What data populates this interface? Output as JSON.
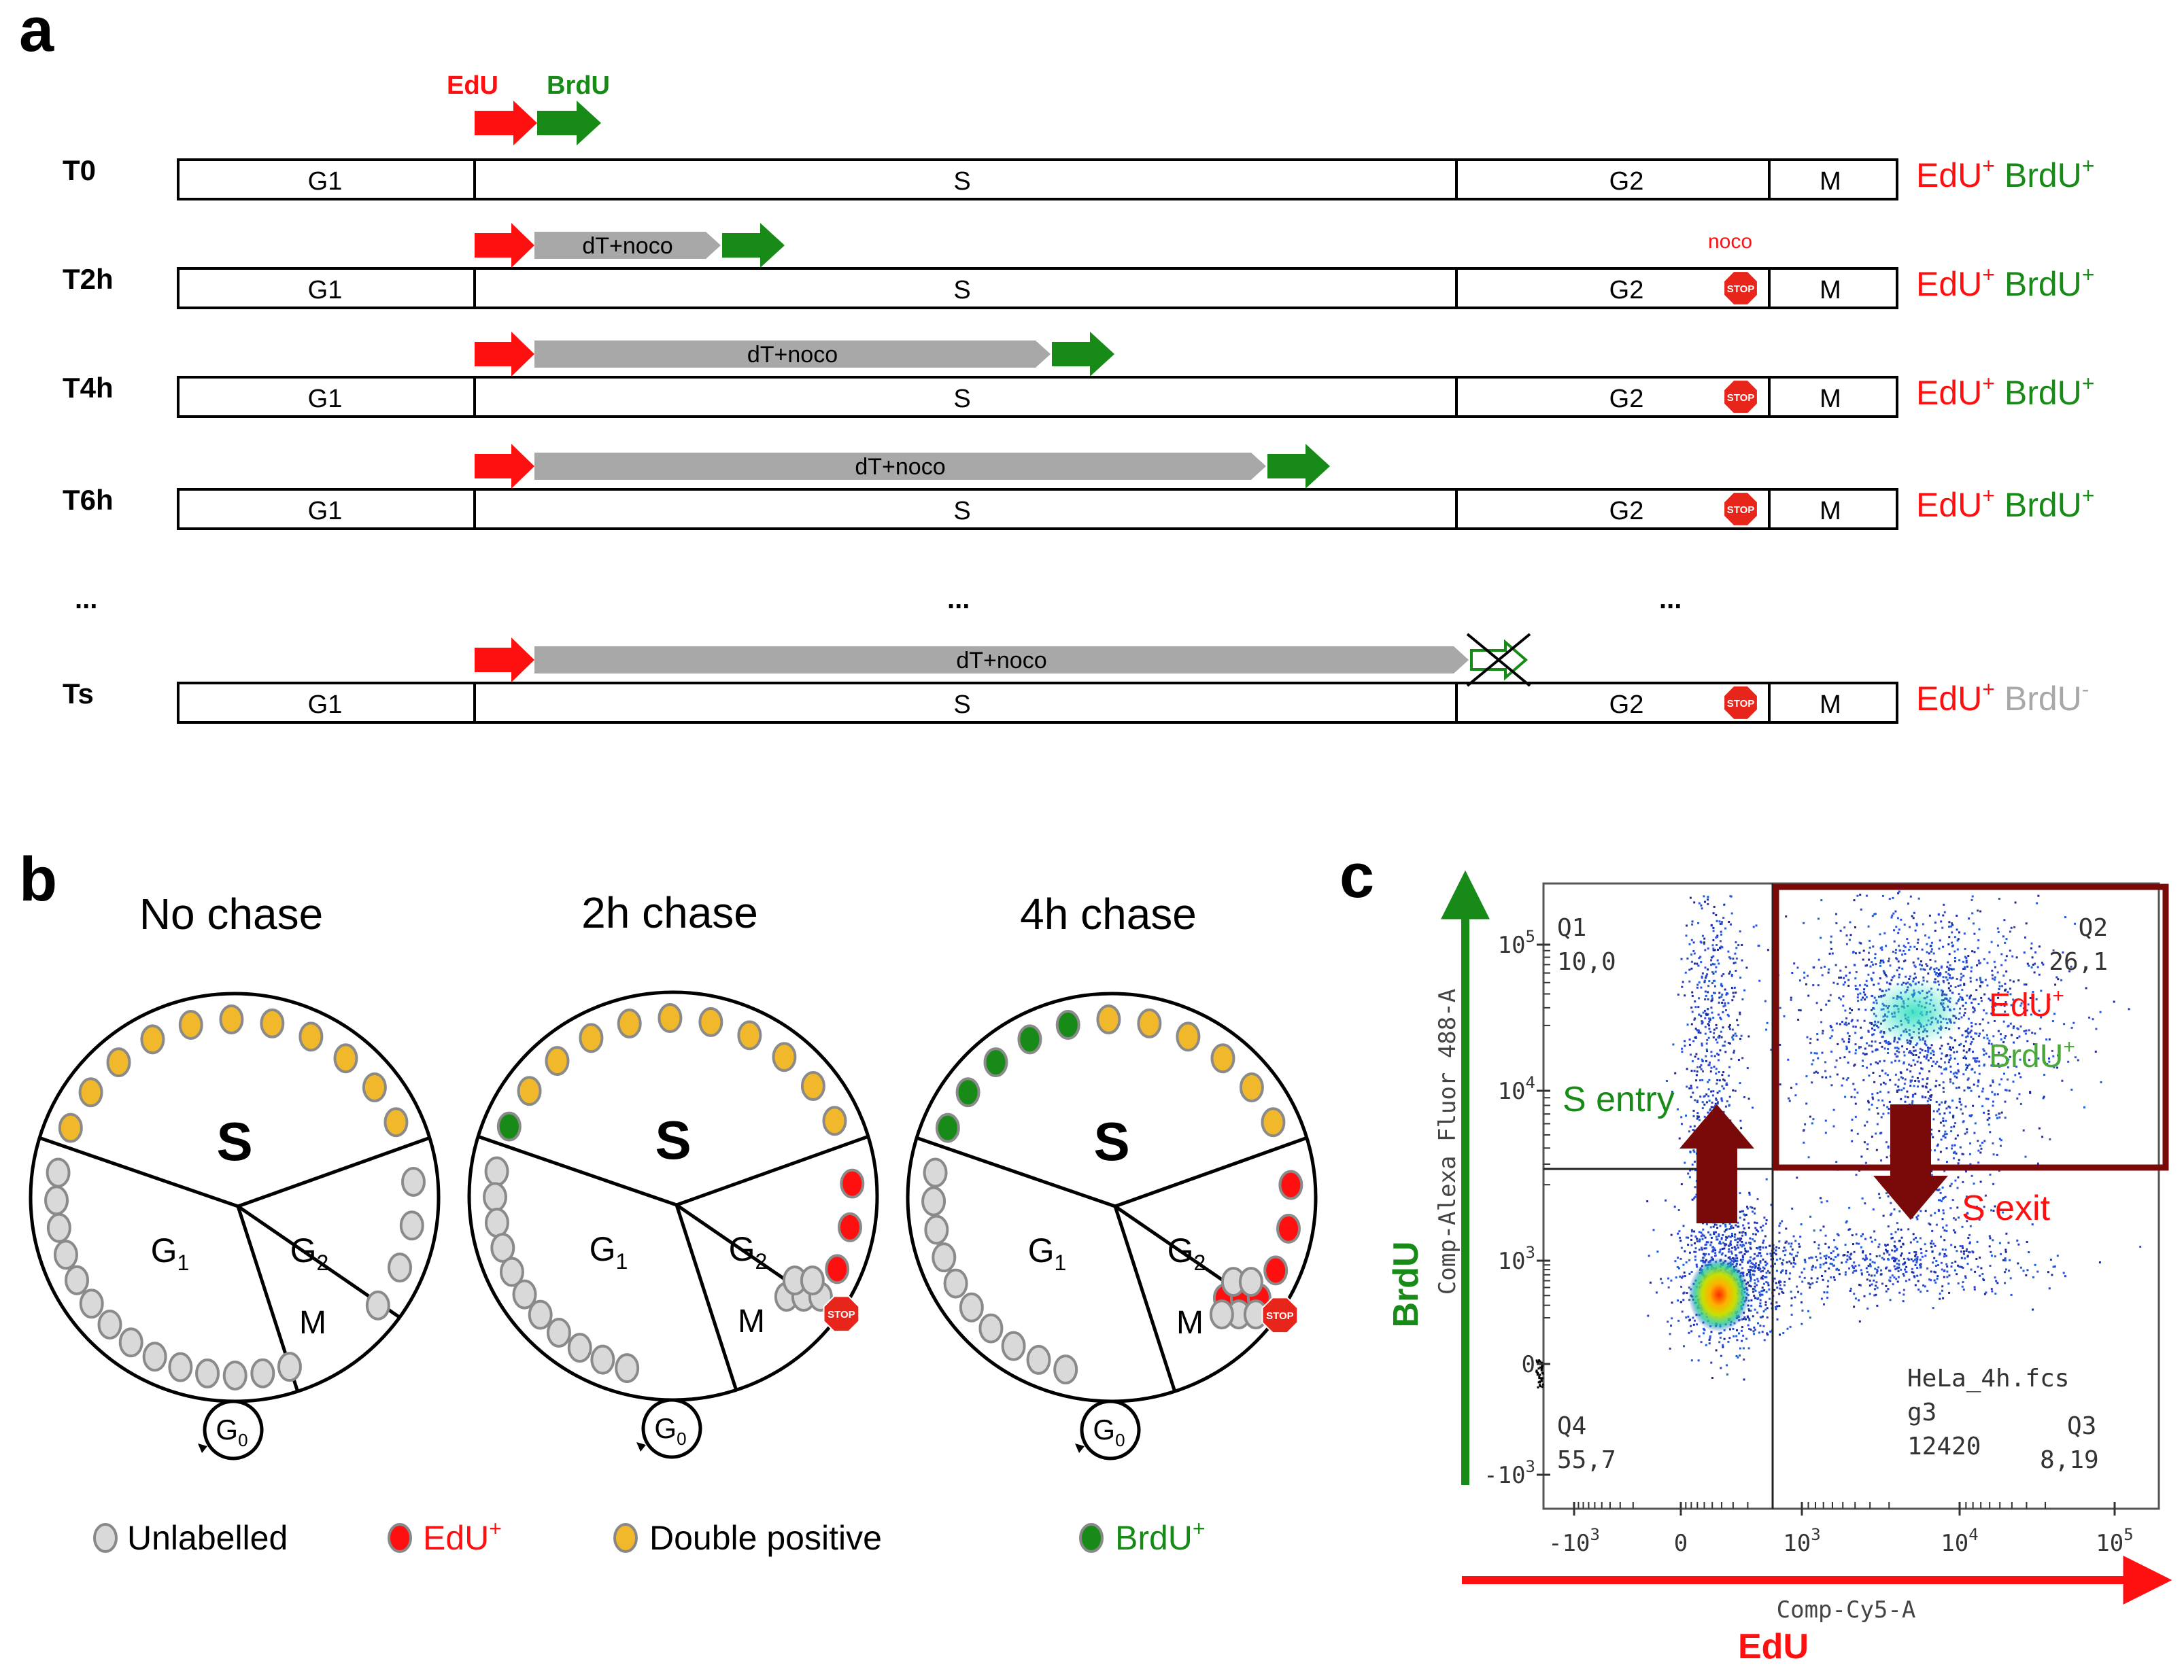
{
  "colors": {
    "red": "#ff1010",
    "green": "#178a17",
    "grey": "#a8a8a8",
    "maroon": "#7a0a0a",
    "orange": "#f2b82c",
    "cellgrey": "#d9d9d9"
  },
  "panel_a": {
    "label": "a",
    "pulse_labels": {
      "edu": "EdU",
      "brdu": "BrdU"
    },
    "phases": {
      "g1": "G1",
      "s": "S",
      "g2": "G2",
      "m": "M"
    },
    "chase_label": "dT+noco",
    "noco_label": "noco",
    "stop_label": "STOP",
    "ellipsis": "...",
    "rows": [
      {
        "time": "T0",
        "result_edu": "EdU",
        "result_edu_sup": "+",
        "result_brdu": "BrdU",
        "result_brdu_sup": "+"
      },
      {
        "time": "T2h",
        "result_edu": "EdU",
        "result_edu_sup": "+",
        "result_brdu": "BrdU",
        "result_brdu_sup": "+"
      },
      {
        "time": "T4h",
        "result_edu": "EdU",
        "result_edu_sup": "+",
        "result_brdu": "BrdU",
        "result_brdu_sup": "+"
      },
      {
        "time": "T6h",
        "result_edu": "EdU",
        "result_edu_sup": "+",
        "result_brdu": "BrdU",
        "result_brdu_sup": "+"
      },
      {
        "time": "Ts",
        "result_edu": "EdU",
        "result_edu_sup": "+",
        "result_brdu": "BrdU",
        "result_brdu_sup": "-"
      }
    ]
  },
  "panel_b": {
    "label": "b",
    "circles": [
      {
        "title": "No chase",
        "s": "S",
        "g1": "G",
        "g1_sub": "1",
        "g2": "G",
        "g2_sub": "2",
        "m": "M",
        "g0": "G",
        "g0_sub": "0"
      },
      {
        "title": "2h chase",
        "s": "S",
        "g1": "G",
        "g1_sub": "1",
        "g2": "G",
        "g2_sub": "2",
        "m": "M",
        "g0": "G",
        "g0_sub": "0"
      },
      {
        "title": "4h chase",
        "s": "S",
        "g1": "G",
        "g1_sub": "1",
        "g2": "G",
        "g2_sub": "2",
        "m": "M",
        "g0": "G",
        "g0_sub": "0"
      }
    ],
    "legend": {
      "unlabelled": "Unlabelled",
      "edu": "EdU",
      "edu_sup": "+",
      "double": "Double positive",
      "brdu": "BrdU",
      "brdu_sup": "+"
    }
  },
  "panel_c": {
    "label": "c",
    "y_axis_name": "BrdU",
    "y_channel": "Comp-Alexa Fluor 488-A",
    "x_axis_name": "EdU",
    "x_channel": "Comp-Cy5-A",
    "y_ticks": [
      {
        "base": "10",
        "exp": "5"
      },
      {
        "base": "10",
        "exp": "4"
      },
      {
        "base": "10",
        "exp": "3"
      },
      {
        "base": "0",
        "exp": ""
      },
      {
        "base": "-10",
        "exp": "3"
      }
    ],
    "x_ticks": [
      {
        "base": "-10",
        "exp": "3"
      },
      {
        "base": "0",
        "exp": ""
      },
      {
        "base": "10",
        "exp": "3"
      },
      {
        "base": "10",
        "exp": "4"
      },
      {
        "base": "10",
        "exp": "5"
      }
    ],
    "quadrants": [
      {
        "name": "Q1",
        "value": "10,0"
      },
      {
        "name": "Q2",
        "value": "26,1"
      },
      {
        "name": "Q3",
        "value": "8,19"
      },
      {
        "name": "Q4",
        "value": "55,7"
      }
    ],
    "q2_edu": "EdU",
    "q2_edu_sup": "+",
    "q2_brdu": "BrdU",
    "q2_brdu_sup": "+",
    "s_entry": "S entry",
    "s_exit": "S exit",
    "file_name": "HeLa_4h.fcs",
    "gate": "g3",
    "event_count": "12420"
  }
}
